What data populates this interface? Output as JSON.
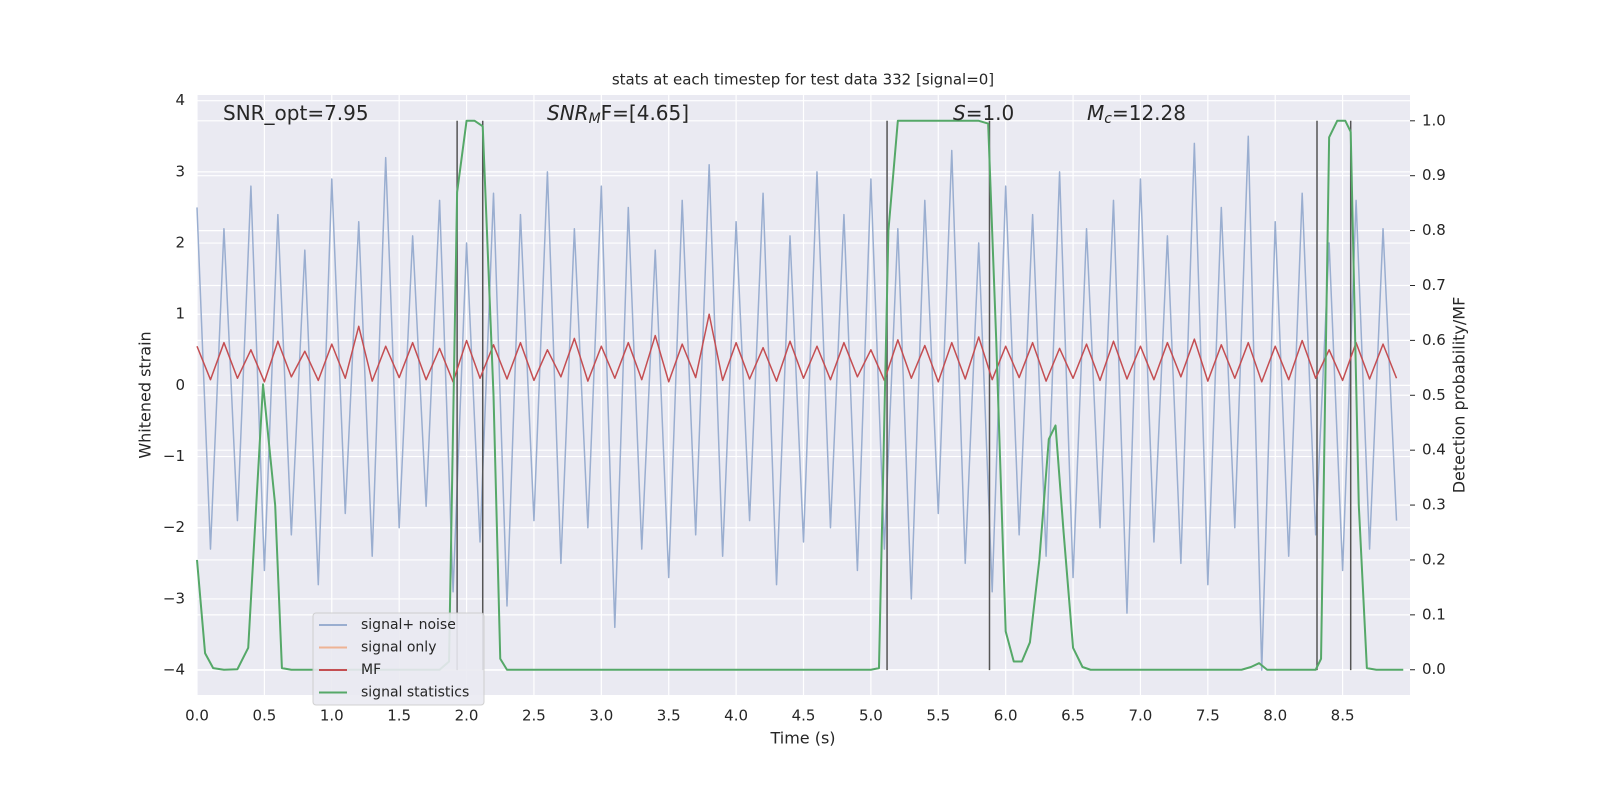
{
  "chart_data": {
    "type": "line",
    "title": "stats at each timestep for test data 332 [signal=0]",
    "xlabel": "Time (s)",
    "ylabel": "Whitened strain",
    "y2label": "Detection probability/MF",
    "annotations": [
      [
        "SNR_opt=7.95"
      ],
      [
        "SNR",
        "M",
        "F=[4.65]"
      ],
      [
        "S",
        "=1.0"
      ],
      [
        "M",
        "c",
        "=12.28"
      ]
    ],
    "xlim": [
      0,
      9.0
    ],
    "ylim": [
      -4.35,
      4.08
    ],
    "y2lim": [
      -0.046,
      1.047
    ],
    "xticks": [
      {
        "value": 0,
        "label": "0.0"
      },
      0.5,
      {
        "value": 1,
        "label": "1.0"
      },
      1.5,
      {
        "value": 2,
        "label": "2.0"
      },
      2.5,
      {
        "value": 3,
        "label": "3.0"
      },
      3.5,
      {
        "value": 4,
        "label": "4.0"
      },
      4.5,
      {
        "value": 5,
        "label": "5.0"
      },
      5.5,
      {
        "value": 6,
        "label": "6.0"
      },
      6.5,
      {
        "value": 7,
        "label": "7.0"
      },
      7.5,
      {
        "value": 8,
        "label": "8.0"
      },
      8.5
    ],
    "yticks": [
      {
        "value": -4,
        "label": "−4"
      },
      {
        "value": -3,
        "label": "−3"
      },
      {
        "value": -2,
        "label": "−2"
      },
      {
        "value": -1,
        "label": "−1"
      },
      0,
      1,
      2,
      3,
      4
    ],
    "y2ticks": [
      {
        "value": 0,
        "label": "0.0"
      },
      0.1,
      0.2,
      0.3,
      0.4,
      0.5,
      0.6,
      0.7,
      0.8,
      0.9,
      {
        "value": 1,
        "label": "1.0"
      }
    ],
    "grid": true,
    "legend": "lower left",
    "vlines": [
      1.93,
      2.12,
      5.12,
      5.88,
      8.31,
      8.56
    ],
    "vline_color": "#555555",
    "x": [
      0,
      0.1,
      0.2,
      0.3,
      0.4,
      0.5,
      0.6,
      0.7,
      0.8,
      0.9,
      1,
      1.1,
      1.2,
      1.3,
      1.4,
      1.5,
      1.6,
      1.7,
      1.8,
      1.9,
      2,
      2.1,
      2.2,
      2.3,
      2.4,
      2.5,
      2.6,
      2.7,
      2.8,
      2.9,
      3,
      3.1,
      3.2,
      3.3,
      3.4,
      3.5,
      3.6,
      3.7,
      3.8,
      3.9,
      4,
      4.1,
      4.2,
      4.3,
      4.4,
      4.5,
      4.6,
      4.7,
      4.8,
      4.9,
      5,
      5.1,
      5.2,
      5.3,
      5.4,
      5.5,
      5.6,
      5.7,
      5.8,
      5.9,
      6,
      6.1,
      6.2,
      6.3,
      6.4,
      6.5,
      6.6,
      6.7,
      6.8,
      6.9,
      7,
      7.1,
      7.2,
      7.3,
      7.4,
      7.5,
      7.6,
      7.7,
      7.8,
      7.9,
      8,
      8.1,
      8.2,
      8.3,
      8.4,
      8.5,
      8.6,
      8.7,
      8.8,
      8.9
    ],
    "series": [
      {
        "name": "signal+ noise",
        "color": "#9aaed0",
        "values": [
          2.5,
          -2.3,
          2.2,
          -1.9,
          2.8,
          -2.6,
          2.4,
          -2.1,
          1.9,
          -2.8,
          2.9,
          -1.8,
          2.3,
          -2.4,
          3.2,
          -2.0,
          2.1,
          -1.7,
          2.6,
          -2.9,
          2.0,
          -2.2,
          2.7,
          -3.1,
          2.4,
          -1.9,
          3.0,
          -2.5,
          2.2,
          -2.0,
          2.8,
          -3.4,
          2.5,
          -2.3,
          1.9,
          -2.7,
          2.6,
          -2.1,
          3.1,
          -2.4,
          2.3,
          -1.9,
          2.7,
          -2.8,
          2.1,
          -2.2,
          3.0,
          -2.0,
          2.4,
          -2.6,
          2.9,
          -2.3,
          2.2,
          -3.0,
          2.6,
          -1.8,
          3.3,
          -2.5,
          2.0,
          -2.9,
          2.8,
          -2.1,
          2.4,
          -2.4,
          3.0,
          -2.7,
          2.2,
          -2.0,
          2.6,
          -3.2,
          2.9,
          -2.2,
          2.1,
          -2.5,
          3.4,
          -2.8,
          2.5,
          -2.0,
          3.5,
          -4.0,
          2.3,
          -2.4,
          2.7,
          -2.1,
          2.0,
          -2.6,
          2.6,
          -2.3,
          2.2,
          -1.9
        ]
      },
      {
        "name": "signal only",
        "color": "#eeb394"
      },
      {
        "name": "MF",
        "color": "#c44e52",
        "values": [
          0.55,
          0.08,
          0.6,
          0.1,
          0.5,
          0.05,
          0.62,
          0.12,
          0.48,
          0.07,
          0.58,
          0.1,
          0.83,
          0.06,
          0.55,
          0.11,
          0.6,
          0.08,
          0.52,
          0.05,
          0.63,
          0.1,
          0.57,
          0.09,
          0.6,
          0.07,
          0.5,
          0.12,
          0.66,
          0.06,
          0.55,
          0.1,
          0.6,
          0.08,
          0.7,
          0.05,
          0.58,
          0.11,
          1.0,
          0.07,
          0.6,
          0.09,
          0.53,
          0.06,
          0.62,
          0.1,
          0.55,
          0.08,
          0.6,
          0.12,
          0.5,
          0.07,
          0.64,
          0.1,
          0.56,
          0.05,
          0.6,
          0.09,
          0.68,
          0.08,
          0.55,
          0.11,
          0.6,
          0.06,
          0.52,
          0.1,
          0.58,
          0.07,
          0.62,
          0.09,
          0.55,
          0.08,
          0.6,
          0.12,
          0.65,
          0.06,
          0.57,
          0.1,
          0.6,
          0.05,
          0.55,
          0.08,
          0.63,
          0.1,
          0.5,
          0.07,
          0.6,
          0.09,
          0.58,
          0.1
        ]
      },
      {
        "name": "signal statistics",
        "color": "#55a868",
        "axis": "y2",
        "x": [
          0,
          0.06,
          0.12,
          0.2,
          0.3,
          0.38,
          0.49,
          0.58,
          0.63,
          0.7,
          1.8,
          1.87,
          1.93,
          2.0,
          2.06,
          2.12,
          2.2,
          2.25,
          2.3,
          5.0,
          5.06,
          5.13,
          5.2,
          5.3,
          5.8,
          5.87,
          5.93,
          6.0,
          6.06,
          6.12,
          6.18,
          6.25,
          6.32,
          6.37,
          6.43,
          6.5,
          6.57,
          6.63,
          7.75,
          7.82,
          7.88,
          7.94,
          8.3,
          8.34,
          8.4,
          8.46,
          8.52,
          8.56,
          8.62,
          8.68,
          8.75,
          8.95
        ],
        "values": [
          0.2,
          0.03,
          0.003,
          0.0,
          0.001,
          0.04,
          0.52,
          0.3,
          0.003,
          0.0,
          0.0,
          0.015,
          0.87,
          1.0,
          1.0,
          0.99,
          0.5,
          0.02,
          0.0,
          0.0,
          0.003,
          0.8,
          1.0,
          1.0,
          1.0,
          0.995,
          0.6,
          0.07,
          0.015,
          0.015,
          0.05,
          0.2,
          0.42,
          0.445,
          0.25,
          0.04,
          0.005,
          0.0,
          0.0,
          0.005,
          0.012,
          0.0,
          0.0,
          0.02,
          0.97,
          1.0,
          1.0,
          0.98,
          0.3,
          0.003,
          0.0,
          0.0
        ]
      }
    ]
  }
}
